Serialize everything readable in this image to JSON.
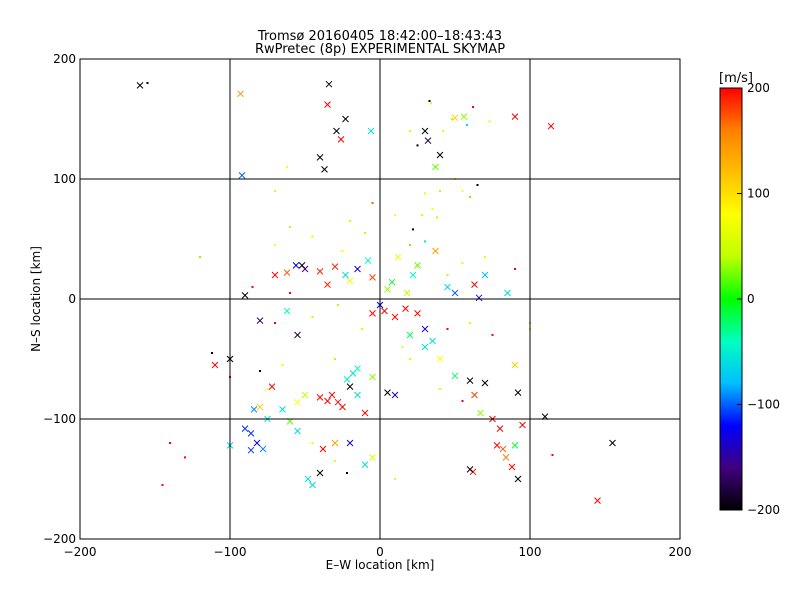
{
  "chart_data": {
    "type": "scatter",
    "title": "Tromsø 20160405 18:42:00–18:43:43",
    "subtitle": "RwPretec (8p) EXPERIMENTAL SKYMAP",
    "xlabel": "E–W location [km]",
    "ylabel": "N–S location [km]",
    "xlim": [
      -200,
      200
    ],
    "ylim": [
      -200,
      200
    ],
    "xticks": [
      -200,
      -100,
      0,
      100,
      200
    ],
    "yticks": [
      -200,
      -100,
      0,
      100,
      200
    ],
    "xtick_labels": [
      "−200",
      "−100",
      "0",
      "100",
      "200"
    ],
    "ytick_labels": [
      "−200",
      "−100",
      "0",
      "100",
      "200"
    ],
    "grid": true,
    "colorbar": {
      "label": "[m/s]",
      "range": [
        -200,
        200
      ],
      "ticks": [
        200,
        100,
        0,
        -100,
        -200
      ],
      "tick_labels": [
        "200",
        "100",
        "0",
        "−100",
        "−200"
      ],
      "colors": [
        "#000000",
        "#40007f",
        "#0000ff",
        "#00bfff",
        "#00ffbf",
        "#00ff00",
        "#bfff00",
        "#ffff00",
        "#ffbf00",
        "#ff8000",
        "#ff0000"
      ]
    },
    "points": [
      {
        "x": -160,
        "y": 178,
        "v": -200,
        "m": "x"
      },
      {
        "x": -93,
        "y": 171,
        "v": 150,
        "m": "x"
      },
      {
        "x": -34,
        "y": 179,
        "v": -200,
        "m": "x"
      },
      {
        "x": -35,
        "y": 162,
        "v": 200,
        "m": "x"
      },
      {
        "x": -23,
        "y": 150,
        "v": -200,
        "m": "x"
      },
      {
        "x": -29,
        "y": 140,
        "v": -200,
        "m": "x"
      },
      {
        "x": -26,
        "y": 133,
        "v": 200,
        "m": "x"
      },
      {
        "x": -6,
        "y": 140,
        "v": -60,
        "m": "x"
      },
      {
        "x": -40,
        "y": 118,
        "v": -200,
        "m": "x"
      },
      {
        "x": -37,
        "y": 108,
        "v": -200,
        "m": "x"
      },
      {
        "x": 30,
        "y": 140,
        "v": -200,
        "m": "x"
      },
      {
        "x": 32,
        "y": 132,
        "v": -180,
        "m": "x"
      },
      {
        "x": 40,
        "y": 120,
        "v": -200,
        "m": "x"
      },
      {
        "x": 37,
        "y": 110,
        "v": 20,
        "m": "x"
      },
      {
        "x": 50,
        "y": 151,
        "v": 110,
        "m": "x"
      },
      {
        "x": 56,
        "y": 152,
        "v": 30,
        "m": "x"
      },
      {
        "x": 114,
        "y": 144,
        "v": 200,
        "m": "x"
      },
      {
        "x": 90,
        "y": 152,
        "v": 200,
        "m": "x"
      },
      {
        "x": -92,
        "y": 103,
        "v": -100,
        "m": "x"
      },
      {
        "x": 37,
        "y": 40,
        "v": 140,
        "m": "x"
      },
      {
        "x": 25,
        "y": 28,
        "v": 20,
        "m": "x"
      },
      {
        "x": 22,
        "y": 20,
        "v": -40,
        "m": "x"
      },
      {
        "x": 8,
        "y": 14,
        "v": -10,
        "m": "x"
      },
      {
        "x": 5,
        "y": 8,
        "v": 30,
        "m": "x"
      },
      {
        "x": -5,
        "y": 18,
        "v": 180,
        "m": "x"
      },
      {
        "x": -15,
        "y": 25,
        "v": -130,
        "m": "x"
      },
      {
        "x": -23,
        "y": 20,
        "v": -60,
        "m": "x"
      },
      {
        "x": -30,
        "y": 27,
        "v": 190,
        "m": "x"
      },
      {
        "x": -40,
        "y": 23,
        "v": 190,
        "m": "x"
      },
      {
        "x": -52,
        "y": 28,
        "v": -200,
        "m": "x"
      },
      {
        "x": -56,
        "y": 28,
        "v": -130,
        "m": "x"
      },
      {
        "x": -50,
        "y": 25,
        "v": -160,
        "m": "x"
      },
      {
        "x": -62,
        "y": 22,
        "v": 170,
        "m": "x"
      },
      {
        "x": -70,
        "y": 20,
        "v": 200,
        "m": "x"
      },
      {
        "x": -35,
        "y": 12,
        "v": 190,
        "m": "x"
      },
      {
        "x": -20,
        "y": 15,
        "v": 70,
        "m": "x"
      },
      {
        "x": -8,
        "y": 32,
        "v": -40,
        "m": "x"
      },
      {
        "x": 12,
        "y": 35,
        "v": 70,
        "m": "x"
      },
      {
        "x": 18,
        "y": 5,
        "v": 40,
        "m": "x"
      },
      {
        "x": 3,
        "y": -10,
        "v": 200,
        "m": "x"
      },
      {
        "x": 10,
        "y": -15,
        "v": 200,
        "m": "x"
      },
      {
        "x": 17,
        "y": -8,
        "v": 200,
        "m": "x"
      },
      {
        "x": -5,
        "y": -12,
        "v": 200,
        "m": "x"
      },
      {
        "x": 25,
        "y": -12,
        "v": 200,
        "m": "x"
      },
      {
        "x": 0,
        "y": -5,
        "v": -130,
        "m": "x"
      },
      {
        "x": 30,
        "y": -25,
        "v": -140,
        "m": "x"
      },
      {
        "x": 20,
        "y": -30,
        "v": -20,
        "m": "x"
      },
      {
        "x": 45,
        "y": 10,
        "v": -60,
        "m": "x"
      },
      {
        "x": 50,
        "y": 5,
        "v": -100,
        "m": "x"
      },
      {
        "x": 63,
        "y": 12,
        "v": 200,
        "m": "x"
      },
      {
        "x": 66,
        "y": 1,
        "v": -130,
        "m": "x"
      },
      {
        "x": 70,
        "y": 20,
        "v": -80,
        "m": "x"
      },
      {
        "x": 85,
        "y": 5,
        "v": -60,
        "m": "x"
      },
      {
        "x": -90,
        "y": 3,
        "v": -200,
        "m": "x"
      },
      {
        "x": -80,
        "y": -18,
        "v": -170,
        "m": "x"
      },
      {
        "x": -62,
        "y": -10,
        "v": -40,
        "m": "x"
      },
      {
        "x": -55,
        "y": -30,
        "v": -180,
        "m": "x"
      },
      {
        "x": -100,
        "y": -50,
        "v": -200,
        "m": "x"
      },
      {
        "x": -110,
        "y": -55,
        "v": 200,
        "m": "x"
      },
      {
        "x": -72,
        "y": -73,
        "v": 200,
        "m": "x"
      },
      {
        "x": -80,
        "y": -90,
        "v": 110,
        "m": "x"
      },
      {
        "x": -84,
        "y": -92,
        "v": -90,
        "m": "x"
      },
      {
        "x": -90,
        "y": -108,
        "v": -110,
        "m": "x"
      },
      {
        "x": -86,
        "y": -112,
        "v": -110,
        "m": "x"
      },
      {
        "x": -82,
        "y": -120,
        "v": -130,
        "m": "x"
      },
      {
        "x": -86,
        "y": -126,
        "v": -110,
        "m": "x"
      },
      {
        "x": -78,
        "y": -125,
        "v": -90,
        "m": "x"
      },
      {
        "x": -100,
        "y": -122,
        "v": -60,
        "m": "x"
      },
      {
        "x": -75,
        "y": -100,
        "v": -50,
        "m": "x"
      },
      {
        "x": -55,
        "y": -86,
        "v": 80,
        "m": "x"
      },
      {
        "x": -50,
        "y": -80,
        "v": 40,
        "m": "x"
      },
      {
        "x": -40,
        "y": -82,
        "v": 200,
        "m": "x"
      },
      {
        "x": -35,
        "y": -85,
        "v": 200,
        "m": "x"
      },
      {
        "x": -32,
        "y": -80,
        "v": 200,
        "m": "x"
      },
      {
        "x": -28,
        "y": -86,
        "v": 200,
        "m": "x"
      },
      {
        "x": -25,
        "y": -90,
        "v": 200,
        "m": "x"
      },
      {
        "x": -20,
        "y": -73,
        "v": -200,
        "m": "x"
      },
      {
        "x": -15,
        "y": -80,
        "v": -60,
        "m": "x"
      },
      {
        "x": -10,
        "y": -95,
        "v": 200,
        "m": "x"
      },
      {
        "x": -18,
        "y": -62,
        "v": -60,
        "m": "x"
      },
      {
        "x": -15,
        "y": -58,
        "v": -40,
        "m": "x"
      },
      {
        "x": -22,
        "y": -67,
        "v": -50,
        "m": "x"
      },
      {
        "x": -5,
        "y": -65,
        "v": 30,
        "m": "x"
      },
      {
        "x": 5,
        "y": -78,
        "v": -200,
        "m": "x"
      },
      {
        "x": 10,
        "y": -80,
        "v": -140,
        "m": "x"
      },
      {
        "x": 35,
        "y": -35,
        "v": -60,
        "m": "x"
      },
      {
        "x": 30,
        "y": -40,
        "v": -60,
        "m": "x"
      },
      {
        "x": 40,
        "y": -50,
        "v": 80,
        "m": "x"
      },
      {
        "x": 50,
        "y": -64,
        "v": -20,
        "m": "x"
      },
      {
        "x": 60,
        "y": -68,
        "v": -200,
        "m": "x"
      },
      {
        "x": 63,
        "y": -80,
        "v": 180,
        "m": "x"
      },
      {
        "x": 70,
        "y": -70,
        "v": -200,
        "m": "x"
      },
      {
        "x": 90,
        "y": -55,
        "v": 110,
        "m": "x"
      },
      {
        "x": 92,
        "y": -78,
        "v": -200,
        "m": "x"
      },
      {
        "x": 67,
        "y": -95,
        "v": 30,
        "m": "x"
      },
      {
        "x": 75,
        "y": -100,
        "v": 200,
        "m": "x"
      },
      {
        "x": 80,
        "y": -108,
        "v": 200,
        "m": "x"
      },
      {
        "x": 78,
        "y": -122,
        "v": 200,
        "m": "x"
      },
      {
        "x": 82,
        "y": -125,
        "v": 170,
        "m": "x"
      },
      {
        "x": 84,
        "y": -132,
        "v": 160,
        "m": "x"
      },
      {
        "x": 90,
        "y": -122,
        "v": -10,
        "m": "x"
      },
      {
        "x": 95,
        "y": -105,
        "v": 200,
        "m": "x"
      },
      {
        "x": 88,
        "y": -140,
        "v": 200,
        "m": "x"
      },
      {
        "x": 92,
        "y": -150,
        "v": -200,
        "m": "x"
      },
      {
        "x": 62,
        "y": -144,
        "v": 200,
        "m": "x"
      },
      {
        "x": 60,
        "y": -142,
        "v": -200,
        "m": "x"
      },
      {
        "x": 110,
        "y": -98,
        "v": -200,
        "m": "x"
      },
      {
        "x": 155,
        "y": -120,
        "v": -200,
        "m": "x"
      },
      {
        "x": 145,
        "y": -168,
        "v": 200,
        "m": "x"
      },
      {
        "x": -48,
        "y": -150,
        "v": -60,
        "m": "x"
      },
      {
        "x": -45,
        "y": -155,
        "v": -60,
        "m": "x"
      },
      {
        "x": -40,
        "y": -145,
        "v": -200,
        "m": "x"
      },
      {
        "x": -38,
        "y": -125,
        "v": 200,
        "m": "x"
      },
      {
        "x": -30,
        "y": -120,
        "v": 140,
        "m": "x"
      },
      {
        "x": -20,
        "y": -120,
        "v": -140,
        "m": "x"
      },
      {
        "x": -10,
        "y": -138,
        "v": -60,
        "m": "x"
      },
      {
        "x": -5,
        "y": -132,
        "v": 60,
        "m": "x"
      },
      {
        "x": -55,
        "y": -110,
        "v": -60,
        "m": "x"
      },
      {
        "x": -60,
        "y": -102,
        "v": 20,
        "m": "x"
      },
      {
        "x": -65,
        "y": -92,
        "v": -60,
        "m": "x"
      },
      {
        "x": -155,
        "y": 180,
        "v": -200,
        "m": "."
      },
      {
        "x": 33,
        "y": 165,
        "v": -200,
        "m": "."
      },
      {
        "x": 34,
        "y": 163,
        "v": 50,
        "m": "."
      },
      {
        "x": 48,
        "y": 150,
        "v": 40,
        "m": "."
      },
      {
        "x": 58,
        "y": 145,
        "v": -60,
        "m": "."
      },
      {
        "x": 62,
        "y": 160,
        "v": 200,
        "m": "."
      },
      {
        "x": 73,
        "y": 148,
        "v": 60,
        "m": "."
      },
      {
        "x": 20,
        "y": 140,
        "v": 60,
        "m": "."
      },
      {
        "x": 25,
        "y": 128,
        "v": -200,
        "m": "."
      },
      {
        "x": 42,
        "y": 140,
        "v": 60,
        "m": "."
      },
      {
        "x": 50,
        "y": 100,
        "v": 60,
        "m": "."
      },
      {
        "x": 55,
        "y": 90,
        "v": 80,
        "m": "."
      },
      {
        "x": 65,
        "y": 95,
        "v": -200,
        "m": "."
      },
      {
        "x": 60,
        "y": 85,
        "v": 20,
        "m": "."
      },
      {
        "x": -62,
        "y": 110,
        "v": 80,
        "m": "."
      },
      {
        "x": -70,
        "y": 90,
        "v": 60,
        "m": "."
      },
      {
        "x": -120,
        "y": 35,
        "v": 30,
        "m": "."
      },
      {
        "x": -112,
        "y": -45,
        "v": -200,
        "m": "."
      },
      {
        "x": 35,
        "y": 75,
        "v": 80,
        "m": "."
      },
      {
        "x": 38,
        "y": 68,
        "v": 40,
        "m": "."
      },
      {
        "x": 28,
        "y": 70,
        "v": 60,
        "m": "."
      },
      {
        "x": 30,
        "y": 88,
        "v": 60,
        "m": "."
      },
      {
        "x": 22,
        "y": 58,
        "v": -200,
        "m": "."
      },
      {
        "x": 40,
        "y": 90,
        "v": 40,
        "m": "."
      },
      {
        "x": -5,
        "y": 80,
        "v": 170,
        "m": "."
      },
      {
        "x": 10,
        "y": 70,
        "v": 80,
        "m": "."
      },
      {
        "x": 20,
        "y": 45,
        "v": 20,
        "m": "."
      },
      {
        "x": 30,
        "y": 48,
        "v": -60,
        "m": "."
      },
      {
        "x": -60,
        "y": 60,
        "v": 40,
        "m": "."
      },
      {
        "x": -45,
        "y": 52,
        "v": 60,
        "m": "."
      },
      {
        "x": -70,
        "y": 45,
        "v": 80,
        "m": "."
      },
      {
        "x": -10,
        "y": 55,
        "v": 40,
        "m": "."
      },
      {
        "x": -60,
        "y": 5,
        "v": 200,
        "m": "."
      },
      {
        "x": -85,
        "y": 10,
        "v": 200,
        "m": "."
      },
      {
        "x": -70,
        "y": -20,
        "v": 200,
        "m": "."
      },
      {
        "x": -45,
        "y": -15,
        "v": 40,
        "m": "."
      },
      {
        "x": -28,
        "y": -5,
        "v": 40,
        "m": "."
      },
      {
        "x": -12,
        "y": -25,
        "v": 60,
        "m": "."
      },
      {
        "x": 15,
        "y": -40,
        "v": 60,
        "m": "."
      },
      {
        "x": 45,
        "y": -25,
        "v": 200,
        "m": "."
      },
      {
        "x": 60,
        "y": -20,
        "v": 60,
        "m": "."
      },
      {
        "x": 75,
        "y": -30,
        "v": 200,
        "m": "."
      },
      {
        "x": 100,
        "y": -20,
        "v": 40,
        "m": "."
      },
      {
        "x": 90,
        "y": 25,
        "v": 200,
        "m": "."
      },
      {
        "x": 70,
        "y": 35,
        "v": 60,
        "m": "."
      },
      {
        "x": -80,
        "y": -60,
        "v": -200,
        "m": "."
      },
      {
        "x": -75,
        "y": -75,
        "v": 80,
        "m": "."
      },
      {
        "x": -100,
        "y": -65,
        "v": 200,
        "m": "."
      },
      {
        "x": -65,
        "y": -55,
        "v": 60,
        "m": "."
      },
      {
        "x": -30,
        "y": -50,
        "v": 40,
        "m": "."
      },
      {
        "x": 20,
        "y": -50,
        "v": 60,
        "m": "."
      },
      {
        "x": 40,
        "y": -75,
        "v": 60,
        "m": "."
      },
      {
        "x": 55,
        "y": -85,
        "v": 200,
        "m": "."
      },
      {
        "x": -140,
        "y": -120,
        "v": 200,
        "m": "."
      },
      {
        "x": -130,
        "y": -132,
        "v": 200,
        "m": "."
      },
      {
        "x": -145,
        "y": -155,
        "v": 200,
        "m": "."
      },
      {
        "x": 115,
        "y": -130,
        "v": 200,
        "m": "."
      },
      {
        "x": -30,
        "y": -135,
        "v": 60,
        "m": "."
      },
      {
        "x": -22,
        "y": -145,
        "v": -200,
        "m": "."
      },
      {
        "x": 10,
        "y": -150,
        "v": 60,
        "m": "."
      },
      {
        "x": -45,
        "y": -120,
        "v": 60,
        "m": "."
      },
      {
        "x": 100,
        "y": -25,
        "v": 40,
        "m": "."
      },
      {
        "x": 45,
        "y": 20,
        "v": 40,
        "m": "."
      },
      {
        "x": 55,
        "y": 30,
        "v": 60,
        "m": "."
      },
      {
        "x": -25,
        "y": 40,
        "v": 80,
        "m": "."
      },
      {
        "x": -20,
        "y": 65,
        "v": 60,
        "m": "."
      }
    ]
  }
}
